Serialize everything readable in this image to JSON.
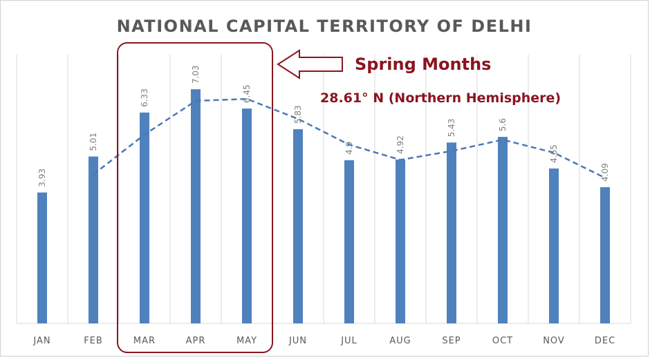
{
  "chart_data": {
    "type": "bar",
    "title": "NATIONAL CAPITAL TERRITORY OF DELHI",
    "categories": [
      "JAN",
      "FEB",
      "MAR",
      "APR",
      "MAY",
      "JUN",
      "JUL",
      "AUG",
      "SEP",
      "OCT",
      "NOV",
      "DEC"
    ],
    "values": [
      3.93,
      5.01,
      6.33,
      7.03,
      6.45,
      5.83,
      4.9,
      4.92,
      5.43,
      5.6,
      4.65,
      4.09
    ],
    "data_labels": [
      "3.93",
      "5.01",
      "6.33",
      "7.03",
      "6.45",
      "5.83",
      "4.9",
      "4.92",
      "5.43",
      "5.6",
      "4.65",
      "4.09"
    ],
    "trendline": {
      "type": "moving-average",
      "period": 2,
      "style": "dashed"
    },
    "ylim": [
      0,
      7.4
    ],
    "grid": "vertical",
    "xlabel": "",
    "ylabel": "",
    "colors": {
      "bar": "#4f81bd",
      "trendline": "#4a78b5",
      "annotation": "#8b1420"
    },
    "highlight": {
      "categories": [
        "MAR",
        "APR",
        "MAY"
      ],
      "label": "Spring Months"
    },
    "annotations": {
      "spring_label": "Spring Months",
      "latitude_label": "28.61° N (Northern Hemisphere)"
    }
  }
}
